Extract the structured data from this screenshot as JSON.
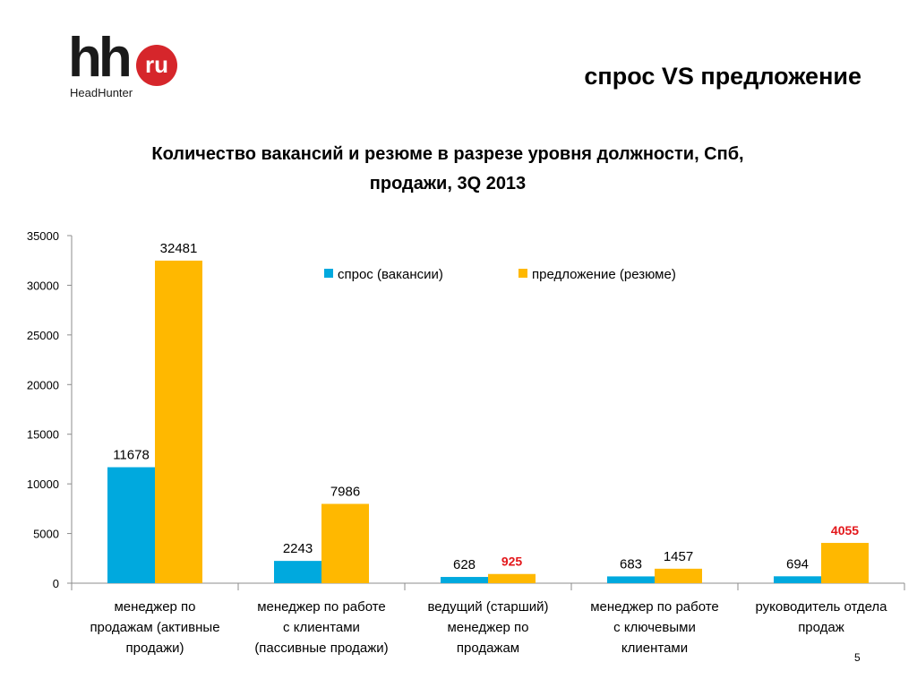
{
  "header": {
    "logo_main": "hh",
    "logo_badge": "ru",
    "logo_caption": "HeadHunter",
    "slide_title": "спрос VS предложение"
  },
  "page_number": "5",
  "colors": {
    "demand": "#00a9de",
    "supply": "#ffb800",
    "highlight_label": "#e3171b",
    "axis": "#8c8c8c"
  },
  "chart_data": {
    "type": "bar",
    "title_line1": "Количество вакансий и резюме в разрезе уровня должности, Спб,",
    "title_line2": "продажи, 3Q 2013",
    "xlabel": "",
    "ylabel": "",
    "ylim": [
      0,
      35000
    ],
    "yticks": [
      0,
      5000,
      10000,
      15000,
      20000,
      25000,
      30000,
      35000
    ],
    "legend_position": "top-right",
    "categories": [
      [
        "менеджер по",
        "продажам (активные",
        "продажи)"
      ],
      [
        "менеджер по работе",
        "с клиентами",
        "(пассивные продажи)"
      ],
      [
        "ведущий (старший)",
        "менеджер по",
        "продажам"
      ],
      [
        "менеджер по работе",
        "с ключевыми",
        "клиентами"
      ],
      [
        "руководитель отдела",
        "продаж"
      ]
    ],
    "series": [
      {
        "name": "спрос (вакансии)",
        "values": [
          11678,
          2243,
          628,
          683,
          694
        ],
        "highlight": [
          false,
          false,
          false,
          false,
          false
        ]
      },
      {
        "name": "предложение (резюме)",
        "values": [
          32481,
          7986,
          925,
          1457,
          4055
        ],
        "highlight": [
          false,
          false,
          true,
          false,
          true
        ]
      }
    ]
  }
}
